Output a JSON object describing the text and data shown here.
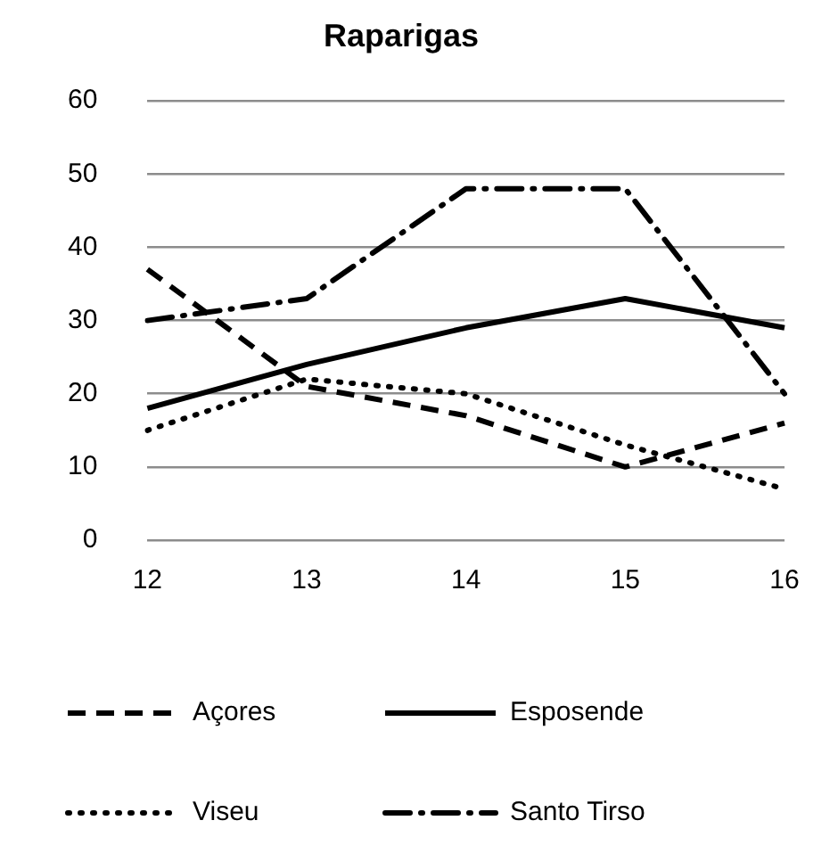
{
  "chart_data": {
    "type": "line",
    "title": "Raparigas",
    "categories": [
      "12",
      "13",
      "14",
      "15",
      "16"
    ],
    "series": [
      {
        "name": "Açores",
        "color": "#000000",
        "line_style": "dashed",
        "values": [
          37,
          21,
          17,
          10,
          16
        ]
      },
      {
        "name": "Esposende",
        "color": "#000000",
        "line_style": "solid",
        "values": [
          18,
          24,
          29,
          33,
          29
        ]
      },
      {
        "name": "Viseu",
        "color": "#000000",
        "line_style": "dotted",
        "values": [
          15,
          22,
          20,
          13,
          7
        ]
      },
      {
        "name": "Santo Tirso",
        "color": "#000000",
        "line_style": "dashdot",
        "values": [
          30,
          33,
          48,
          48,
          20
        ]
      }
    ],
    "ylim": [
      0,
      60
    ],
    "yticks": [
      0,
      10,
      20,
      30,
      40,
      50,
      60
    ],
    "grid": "y",
    "legend": "bottom",
    "marker": "none"
  }
}
